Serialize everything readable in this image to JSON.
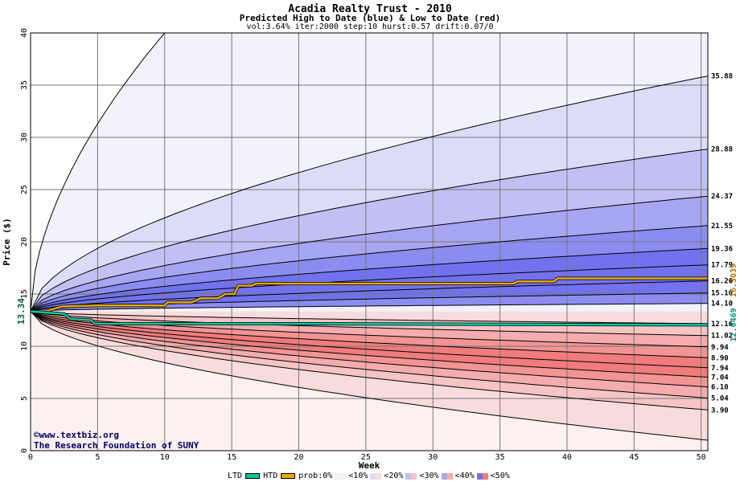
{
  "header": {
    "title": "Acadia Realty Trust - 2010",
    "subtitle": "Predicted High to Date (blue) &  Low to Date (red)",
    "params": "vol:3.64% iter:2000 step:10 hurst:0.57 drift:0.07/0"
  },
  "credits": {
    "site": "©www.textbiz.org",
    "org": "The Research Foundation of SUNY"
  },
  "legend": {
    "ltd": "LTD",
    "htd": "HTD",
    "prob": "prob:0%",
    "b10": "<10%",
    "b20": "<20%",
    "b30": "<30%",
    "b40": "<40%",
    "b50": "<50%"
  },
  "chart_data": {
    "type": "area",
    "xlabel": "Week",
    "ylabel": "Price ($)",
    "xlim": [
      0,
      50.5
    ],
    "ylim": [
      0,
      40
    ],
    "x_ticks": [
      0,
      5,
      10,
      15,
      20,
      25,
      30,
      35,
      40,
      45,
      50
    ],
    "y_ticks": [
      0,
      5,
      10,
      15,
      20,
      25,
      30,
      35,
      40
    ],
    "grid": true,
    "start_price": "13.34",
    "start_value": 13.34,
    "htd_final_label": "16.3039",
    "htd_final": 16.3039,
    "ltd_final_label": "12.0469",
    "ltd_final": 12.0469,
    "colors": {
      "htd": "#e8a800",
      "ltd": "#00c8a0",
      "blue": [
        "#f2f2fc",
        "#dcdcf8",
        "#c0c0f4",
        "#a6a6f2",
        "#8c8cf0",
        "#7272ee"
      ],
      "red": [
        "#fcf0f0",
        "#f8dcdc",
        "#f6c4c4",
        "#f4acac",
        "#f29494",
        "#f07c7c"
      ]
    },
    "upper_final_labels": [
      "35.88",
      "28.88",
      "24.37",
      "21.55",
      "19.36",
      "17.79",
      "16.26",
      "15.10",
      "14.10"
    ],
    "upper_finals": [
      35.88,
      28.88,
      24.37,
      21.55,
      19.36,
      17.79,
      16.26,
      15.1,
      14.1
    ],
    "lower_final_labels": [
      "12.16",
      "11.02",
      "9.94",
      "8.90",
      "7.94",
      "7.04",
      "6.10",
      "5.04",
      "3.90"
    ],
    "lower_finals": [
      12.16,
      11.02,
      9.94,
      8.9,
      7.94,
      7.04,
      6.1,
      5.04,
      3.9
    ],
    "outer_upper_week": 10,
    "outer_lower_final": 1.0,
    "htd_path": [
      [
        0,
        13.34
      ],
      [
        1.3,
        13.4
      ],
      [
        2.3,
        13.8
      ],
      [
        5,
        13.9
      ],
      [
        10,
        13.9
      ],
      [
        10.2,
        14.2
      ],
      [
        12,
        14.2
      ],
      [
        12.7,
        14.6
      ],
      [
        14,
        14.6
      ],
      [
        14.5,
        15.0
      ],
      [
        15.2,
        15.0
      ],
      [
        15.5,
        15.8
      ],
      [
        16.5,
        15.8
      ],
      [
        16.8,
        16.0
      ],
      [
        29,
        16.0
      ],
      [
        36,
        16.0
      ],
      [
        36.3,
        16.2
      ],
      [
        39,
        16.2
      ],
      [
        39.3,
        16.5
      ],
      [
        50.5,
        16.5
      ]
    ],
    "ltd_path": [
      [
        0,
        13.34
      ],
      [
        2.5,
        13.1
      ],
      [
        3,
        12.6
      ],
      [
        4.5,
        12.5
      ],
      [
        4.8,
        12.15
      ],
      [
        20,
        12.15
      ],
      [
        50.5,
        12.05
      ]
    ]
  }
}
